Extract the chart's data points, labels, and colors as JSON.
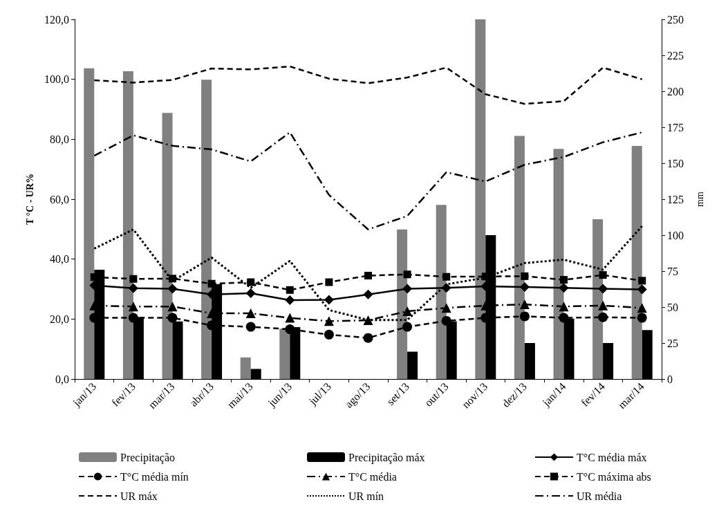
{
  "chart_data": {
    "type": "bar",
    "ylabel": "T °C - UR%",
    "y2label": "mm",
    "categories": [
      "jan/13",
      "fev/13",
      "mar/13",
      "abr/13",
      "mai/13",
      "jun/13",
      "jul/13",
      "ago/13",
      "set/13",
      "out/13",
      "nov/13",
      "dez/13",
      "jan/14",
      "fev/14",
      "mar/14"
    ],
    "series": [
      {
        "name": "Precipitação",
        "axis": "y2",
        "color": "#808080",
        "values": [
          216,
          214,
          185,
          208,
          15,
          35,
          0,
          0,
          104,
          121,
          250,
          169,
          160,
          111,
          162
        ]
      },
      {
        "name": "Precipitação máx",
        "axis": "y2",
        "color": "#000000",
        "values": [
          76,
          43,
          40,
          66,
          7,
          36,
          0,
          0,
          19,
          40,
          100,
          25,
          42,
          25,
          34
        ]
      },
      {
        "name": "T°C média máx",
        "type": "line",
        "color": "#000000",
        "marker": "diamond",
        "line_style": "solid",
        "values": [
          31.2,
          30.3,
          30.1,
          28.2,
          28.6,
          26.3,
          26.4,
          28.2,
          30.1,
          30.4,
          30.9,
          30.7,
          30.4,
          30.1,
          29.9
        ]
      },
      {
        "name": "T°C média mín",
        "type": "line",
        "color": "#000000",
        "marker": "circle",
        "line_style": "dashed",
        "values": [
          20.4,
          20.4,
          20.4,
          17.9,
          17.4,
          16.6,
          14.8,
          13.7,
          17.4,
          19.4,
          20.4,
          20.9,
          20.4,
          20.6,
          20.4
        ]
      },
      {
        "name": "T°C média",
        "type": "line",
        "color": "#000000",
        "marker": "triangle",
        "line_style": "dashdot",
        "values": [
          24.5,
          24.2,
          24.2,
          21.9,
          21.9,
          20.4,
          19.3,
          19.6,
          22.6,
          23.7,
          24.5,
          24.9,
          24.2,
          24.5,
          23.7
        ]
      },
      {
        "name": "T°C máxima abs",
        "type": "line",
        "color": "#000000",
        "marker": "square",
        "line_style": "dashed",
        "values": [
          34.0,
          33.4,
          33.5,
          31.8,
          32.3,
          29.7,
          32.3,
          34.5,
          34.9,
          34.1,
          34.2,
          34.3,
          33.1,
          34.7,
          32.8
        ]
      },
      {
        "name": "UR máx",
        "type": "line",
        "color": "#000000",
        "marker": "none",
        "line_style": "dashed",
        "values": [
          99.7,
          98.9,
          99.8,
          103.6,
          103.3,
          104.3,
          100.2,
          98.7,
          100.6,
          103.9,
          95.0,
          91.8,
          92.7,
          103.9,
          100.0
        ]
      },
      {
        "name": "UR mín",
        "type": "line",
        "color": "#000000",
        "marker": "none",
        "line_style": "dotted",
        "values": [
          43.5,
          49.9,
          32.7,
          40.5,
          30.4,
          39.4,
          23.0,
          19.7,
          19.7,
          31.6,
          33.8,
          38.7,
          39.8,
          36.5,
          51.0
        ]
      },
      {
        "name": "UR média",
        "type": "line",
        "color": "#000000",
        "marker": "none",
        "line_style": "dashdot",
        "values": [
          74.5,
          81.3,
          77.8,
          76.6,
          72.6,
          82.3,
          61.4,
          49.9,
          54.4,
          69.0,
          65.9,
          71.5,
          74.1,
          79.0,
          82.3
        ]
      }
    ],
    "ylim": [
      0,
      120
    ],
    "yticks": [
      {
        "value": 0,
        "label": "0,0"
      },
      {
        "value": 20,
        "label": "20,0"
      },
      {
        "value": 40,
        "label": "40,0"
      },
      {
        "value": 60,
        "label": "60,0"
      },
      {
        "value": 80,
        "label": "80,0"
      },
      {
        "value": 100,
        "label": "100,0"
      },
      {
        "value": 120,
        "label": "120,0"
      }
    ],
    "y2lim": [
      0,
      250
    ],
    "y2ticks": [
      0,
      25,
      50,
      75,
      100,
      125,
      150,
      175,
      200,
      225,
      250
    ],
    "grid": false,
    "legend": "bottom"
  }
}
